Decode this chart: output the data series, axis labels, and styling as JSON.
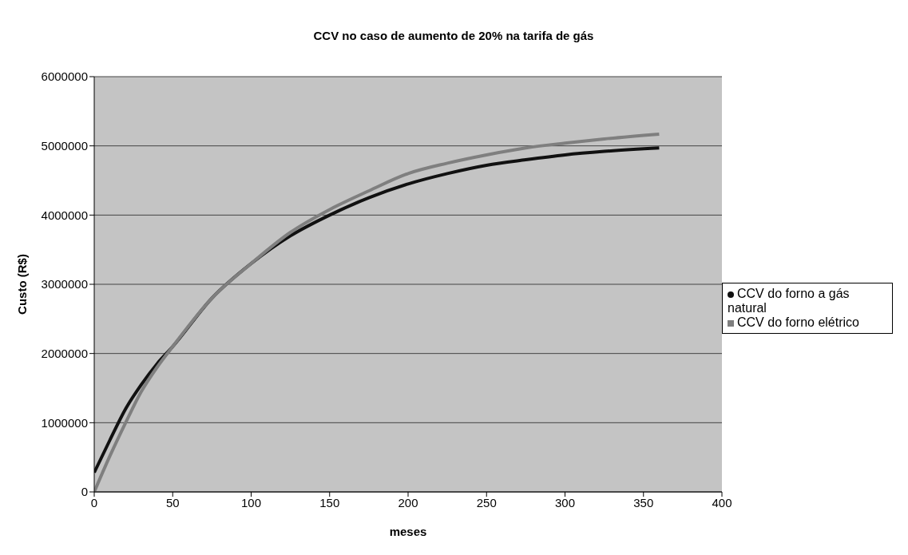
{
  "chart_data": {
    "type": "line",
    "title": "CCV no caso de aumento de 20% na tarifa de gás",
    "xlabel": "meses",
    "ylabel": "Custo (R$)",
    "x": [
      0,
      10,
      20,
      30,
      40,
      50,
      75,
      100,
      125,
      150,
      175,
      200,
      225,
      250,
      275,
      300,
      325,
      360
    ],
    "series": [
      {
        "name": "CCV do forno a gás natural",
        "color": "#111111",
        "values": [
          280000,
          750000,
          1200000,
          1550000,
          1850000,
          2100000,
          2800000,
          3300000,
          3700000,
          4000000,
          4250000,
          4450000,
          4600000,
          4720000,
          4800000,
          4870000,
          4920000,
          4970000
        ]
      },
      {
        "name": "CCV do forno elétrico",
        "color": "#7f7f7f",
        "values": [
          0,
          520000,
          1000000,
          1450000,
          1800000,
          2100000,
          2800000,
          3300000,
          3750000,
          4080000,
          4350000,
          4600000,
          4750000,
          4870000,
          4970000,
          5040000,
          5100000,
          5170000
        ]
      }
    ],
    "xlim": [
      0,
      400
    ],
    "xticks": [
      0,
      50,
      100,
      150,
      200,
      250,
      300,
      350,
      400
    ],
    "ylim": [
      0,
      6000000
    ],
    "yticks": [
      0,
      1000000,
      2000000,
      3000000,
      4000000,
      5000000,
      6000000
    ],
    "grid": "y",
    "legend": "right",
    "marker": "none",
    "line_style": "solid"
  }
}
